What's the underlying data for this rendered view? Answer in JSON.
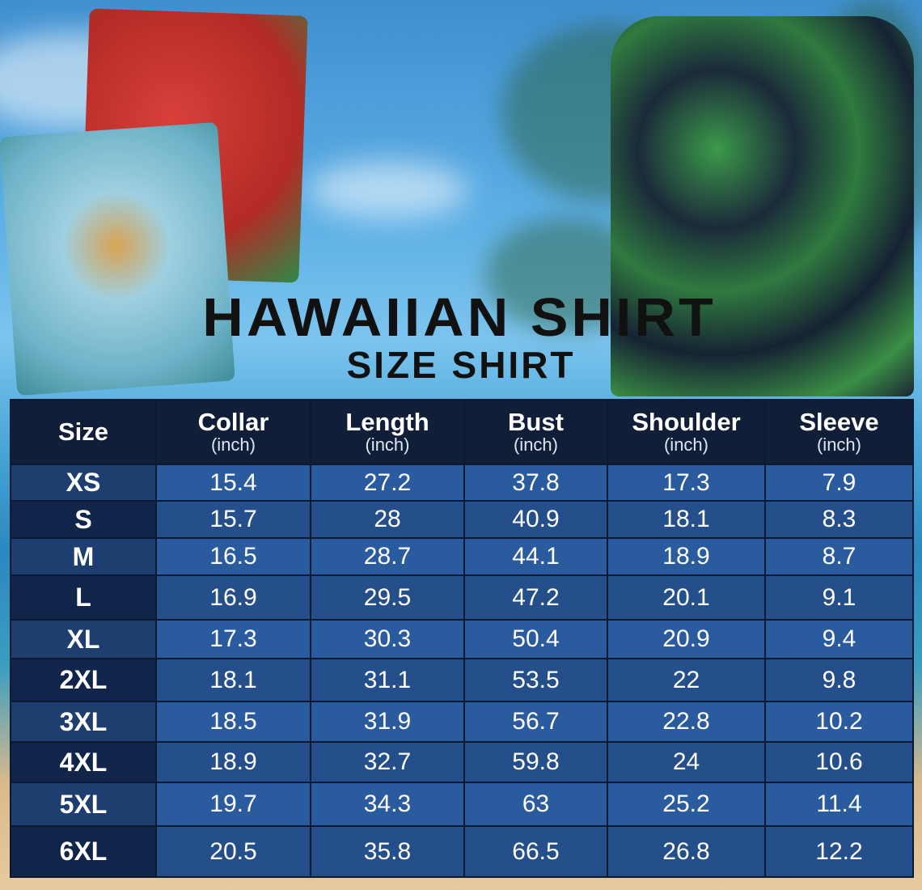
{
  "title": "HAWAIIAN SHIRT",
  "subtitle": "SIZE SHIRT",
  "colors": {
    "header": "#111e38",
    "row_light": "#2b5b9f",
    "row_dark": "#244f8a",
    "size_col_dark": "#11254a"
  },
  "images": [
    "folded-red-hawaiian-shirt",
    "folded-light-blue-hawaiian-shirt",
    "model-wearing-navy-flamingo-hawaiian-shirt"
  ],
  "table": {
    "columns": [
      {
        "label": "Size",
        "unit": ""
      },
      {
        "label": "Collar",
        "unit": "(inch)"
      },
      {
        "label": "Length",
        "unit": "(inch)"
      },
      {
        "label": "Bust",
        "unit": "(inch)"
      },
      {
        "label": "Shoulder",
        "unit": "(inch)"
      },
      {
        "label": "Sleeve",
        "unit": "(inch)"
      }
    ],
    "rows": [
      [
        "XS",
        "15.4",
        "27.2",
        "37.8",
        "17.3",
        "7.9"
      ],
      [
        "S",
        "15.7",
        "28",
        "40.9",
        "18.1",
        "8.3"
      ],
      [
        "M",
        "16.5",
        "28.7",
        "44.1",
        "18.9",
        "8.7"
      ],
      [
        "L",
        "16.9",
        "29.5",
        "47.2",
        "20.1",
        "9.1"
      ],
      [
        "XL",
        "17.3",
        "30.3",
        "50.4",
        "20.9",
        "9.4"
      ],
      [
        "2XL",
        "18.1",
        "31.1",
        "53.5",
        "22",
        "9.8"
      ],
      [
        "3XL",
        "18.5",
        "31.9",
        "56.7",
        "22.8",
        "10.2"
      ],
      [
        "4XL",
        "18.9",
        "32.7",
        "59.8",
        "24",
        "10.6"
      ],
      [
        "5XL",
        "19.7",
        "34.3",
        "63",
        "25.2",
        "11.4"
      ],
      [
        "6XL",
        "20.5",
        "35.8",
        "66.5",
        "26.8",
        "12.2"
      ]
    ]
  }
}
